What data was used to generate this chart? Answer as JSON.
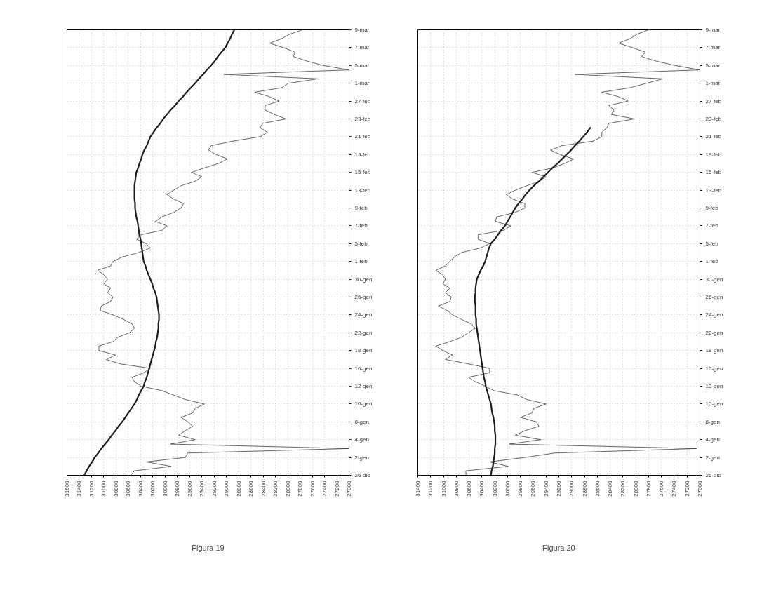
{
  "chart_data": [
    {
      "type": "line",
      "orientation": "horizontal",
      "title": "Figura 19",
      "grid": true,
      "xlim": [
        31600,
        27000
      ],
      "xticks": [
        31600,
        31400,
        31200,
        31000,
        30800,
        30600,
        30400,
        30200,
        30000,
        29800,
        29600,
        29400,
        29200,
        29000,
        28800,
        28600,
        28400,
        28200,
        28000,
        27800,
        27600,
        27400,
        27200,
        27000
      ],
      "categories": [
        "9-mar",
        null,
        null,
        null,
        "7-mar",
        null,
        null,
        null,
        "5-mar",
        null,
        null,
        null,
        "1-mar",
        null,
        null,
        null,
        "27-feb",
        null,
        null,
        null,
        "23-feb",
        null,
        null,
        null,
        "21-feb",
        null,
        null,
        null,
        "19-feb",
        null,
        null,
        null,
        "15-feb",
        null,
        null,
        null,
        "13-feb",
        null,
        null,
        null,
        "9-feb",
        null,
        null,
        null,
        "7-feb",
        null,
        null,
        null,
        "5-feb",
        null,
        null,
        null,
        "1-feb",
        null,
        null,
        null,
        "30-gen",
        null,
        null,
        null,
        "26-gen",
        null,
        null,
        null,
        "24-gen",
        null,
        null,
        null,
        "22-gen",
        null,
        null,
        null,
        "18-gen",
        null,
        null,
        null,
        "16-gen",
        null,
        null,
        null,
        "12-gen",
        null,
        null,
        null,
        "10-gen",
        null,
        null,
        null,
        "8-gen",
        null,
        null,
        null,
        "4-gen",
        null,
        null,
        null,
        "2-gen",
        null,
        null,
        null,
        "26-dic"
      ],
      "series": [
        {
          "color": "#2e2e2e",
          "values": [
            27760,
            27970,
            28100,
            28300,
            28070,
            27880,
            27910,
            27690,
            27420,
            27000,
            29040,
            27500,
            27990,
            28100,
            28540,
            28300,
            28140,
            28370,
            28370,
            28220,
            28030,
            28410,
            28450,
            28330,
            28450,
            28900,
            29250,
            29290,
            29170,
            28980,
            29130,
            29360,
            29570,
            29400,
            29510,
            29740,
            29860,
            29970,
            29860,
            29700,
            29740,
            29860,
            30050,
            30160,
            29970,
            30050,
            30390,
            30470,
            30310,
            30240,
            30430,
            30700,
            30850,
            30890,
            31100,
            31000,
            30940,
            31000,
            30890,
            30940,
            30850,
            30890,
            31040,
            31060,
            30850,
            30680,
            30540,
            30500,
            30580,
            30770,
            30850,
            31080,
            31080,
            30810,
            30960,
            30730,
            30240,
            30350,
            30540,
            30500,
            30390,
            30050,
            29860,
            29670,
            29360,
            29510,
            29550,
            29740,
            29630,
            29550,
            29670,
            29780,
            29510,
            29910,
            27000,
            29630,
            29670,
            30310,
            29900,
            30500,
            30560
          ]
        },
        {
          "color": "#1c1c1c",
          "values": [
            28870,
            28910,
            28940,
            28980,
            29020,
            29080,
            29140,
            29190,
            29250,
            29320,
            29380,
            29450,
            29510,
            29580,
            29650,
            29710,
            29780,
            29840,
            29910,
            29970,
            30030,
            30080,
            30140,
            30190,
            30240,
            30270,
            30300,
            30340,
            30370,
            30390,
            30420,
            30440,
            30470,
            30480,
            30490,
            30500,
            30500,
            30500,
            30500,
            30490,
            30490,
            30480,
            30470,
            30450,
            30440,
            30430,
            30420,
            30400,
            30390,
            30380,
            30370,
            30360,
            30350,
            30320,
            30300,
            30270,
            30240,
            30210,
            30190,
            30160,
            30140,
            30130,
            30120,
            30110,
            30100,
            30100,
            30110,
            30110,
            30120,
            30130,
            30150,
            30160,
            30180,
            30200,
            30220,
            30240,
            30260,
            30280,
            30300,
            30330,
            30350,
            30390,
            30430,
            30460,
            30500,
            30550,
            30600,
            30650,
            30700,
            30760,
            30810,
            30870,
            30920,
            30980,
            31040,
            31090,
            31150,
            31190,
            31240,
            31280,
            31320
          ]
        }
      ]
    },
    {
      "type": "line",
      "orientation": "horizontal",
      "title": "Figura 20",
      "grid": true,
      "xlim": [
        31400,
        27000
      ],
      "xticks": [
        31400,
        31200,
        31000,
        30800,
        30600,
        30400,
        30200,
        30000,
        29800,
        29600,
        29400,
        29200,
        29000,
        28800,
        28600,
        28400,
        28200,
        28000,
        27800,
        27600,
        27400,
        27200,
        27000
      ],
      "categories": [
        "9-mar",
        null,
        null,
        null,
        "7-mar",
        null,
        null,
        null,
        "5-mar",
        null,
        null,
        null,
        "1-mar",
        null,
        null,
        null,
        "27-feb",
        null,
        null,
        null,
        "23-feb",
        null,
        null,
        null,
        "21-feb",
        null,
        null,
        null,
        "19-feb",
        null,
        null,
        null,
        "15-feb",
        null,
        null,
        null,
        "13-feb",
        null,
        null,
        null,
        "9-feb",
        null,
        null,
        null,
        "7-feb",
        null,
        null,
        null,
        "5-feb",
        null,
        null,
        null,
        "1-feb",
        null,
        null,
        null,
        "30-gen",
        null,
        null,
        null,
        "26-gen",
        null,
        null,
        null,
        "24-gen",
        null,
        null,
        null,
        "22-gen",
        null,
        null,
        null,
        "18-gen",
        null,
        null,
        null,
        "16-gen",
        null,
        null,
        null,
        "12-gen",
        null,
        null,
        null,
        "10-gen",
        null,
        null,
        null,
        "8-gen",
        null,
        null,
        null,
        "4-gen",
        null,
        null,
        null,
        "2-gen",
        null,
        null,
        null,
        "26-dic"
      ],
      "series": [
        {
          "color": "#2e2e2e",
          "values": [
            27800,
            27980,
            28090,
            28270,
            28050,
            27850,
            27910,
            27690,
            27390,
            27000,
            28950,
            27580,
            27830,
            28090,
            28530,
            28270,
            28120,
            28420,
            28340,
            28380,
            28020,
            28420,
            28450,
            28530,
            28530,
            28670,
            29150,
            29330,
            29180,
            28970,
            29110,
            29290,
            29620,
            29400,
            29510,
            29700,
            29880,
            30020,
            29920,
            29730,
            29730,
            29880,
            30170,
            30190,
            29950,
            30060,
            30460,
            30460,
            30280,
            30430,
            30720,
            30830,
            30900,
            30970,
            31120,
            31010,
            30970,
            31010,
            30900,
            30970,
            30880,
            30900,
            31080,
            30940,
            30860,
            30720,
            30570,
            30500,
            30610,
            30720,
            30900,
            31120,
            31010,
            30860,
            30970,
            30610,
            30280,
            30280,
            30610,
            30500,
            30350,
            30210,
            29840,
            29700,
            29400,
            29590,
            29620,
            29800,
            29550,
            29510,
            29730,
            29880,
            29480,
            29970,
            27050,
            29260,
            29730,
            30280,
            29990,
            30650,
            30650
          ]
        },
        {
          "color": "#1c1c1c",
          "values": [
            null,
            null,
            null,
            null,
            null,
            null,
            null,
            null,
            null,
            null,
            null,
            null,
            null,
            null,
            null,
            null,
            null,
            null,
            null,
            null,
            null,
            null,
            28710,
            28760,
            28820,
            28880,
            28950,
            29010,
            29080,
            29150,
            29220,
            29300,
            29370,
            29440,
            29510,
            29590,
            29660,
            29720,
            29770,
            29830,
            29880,
            29920,
            29960,
            30000,
            30040,
            30100,
            30150,
            30200,
            30260,
            30290,
            30310,
            30330,
            30350,
            30380,
            30420,
            30450,
            30480,
            30490,
            30500,
            30500,
            30510,
            30510,
            30500,
            30500,
            30500,
            30490,
            30490,
            30480,
            30470,
            30460,
            30450,
            30440,
            30430,
            30420,
            30410,
            30400,
            30390,
            30380,
            30370,
            30350,
            30340,
            30320,
            30300,
            30280,
            30260,
            30250,
            30240,
            30220,
            30210,
            30200,
            30200,
            30190,
            30190,
            30190,
            30200,
            30200,
            30210,
            30220,
            30230,
            30250,
            30260
          ]
        }
      ]
    }
  ]
}
